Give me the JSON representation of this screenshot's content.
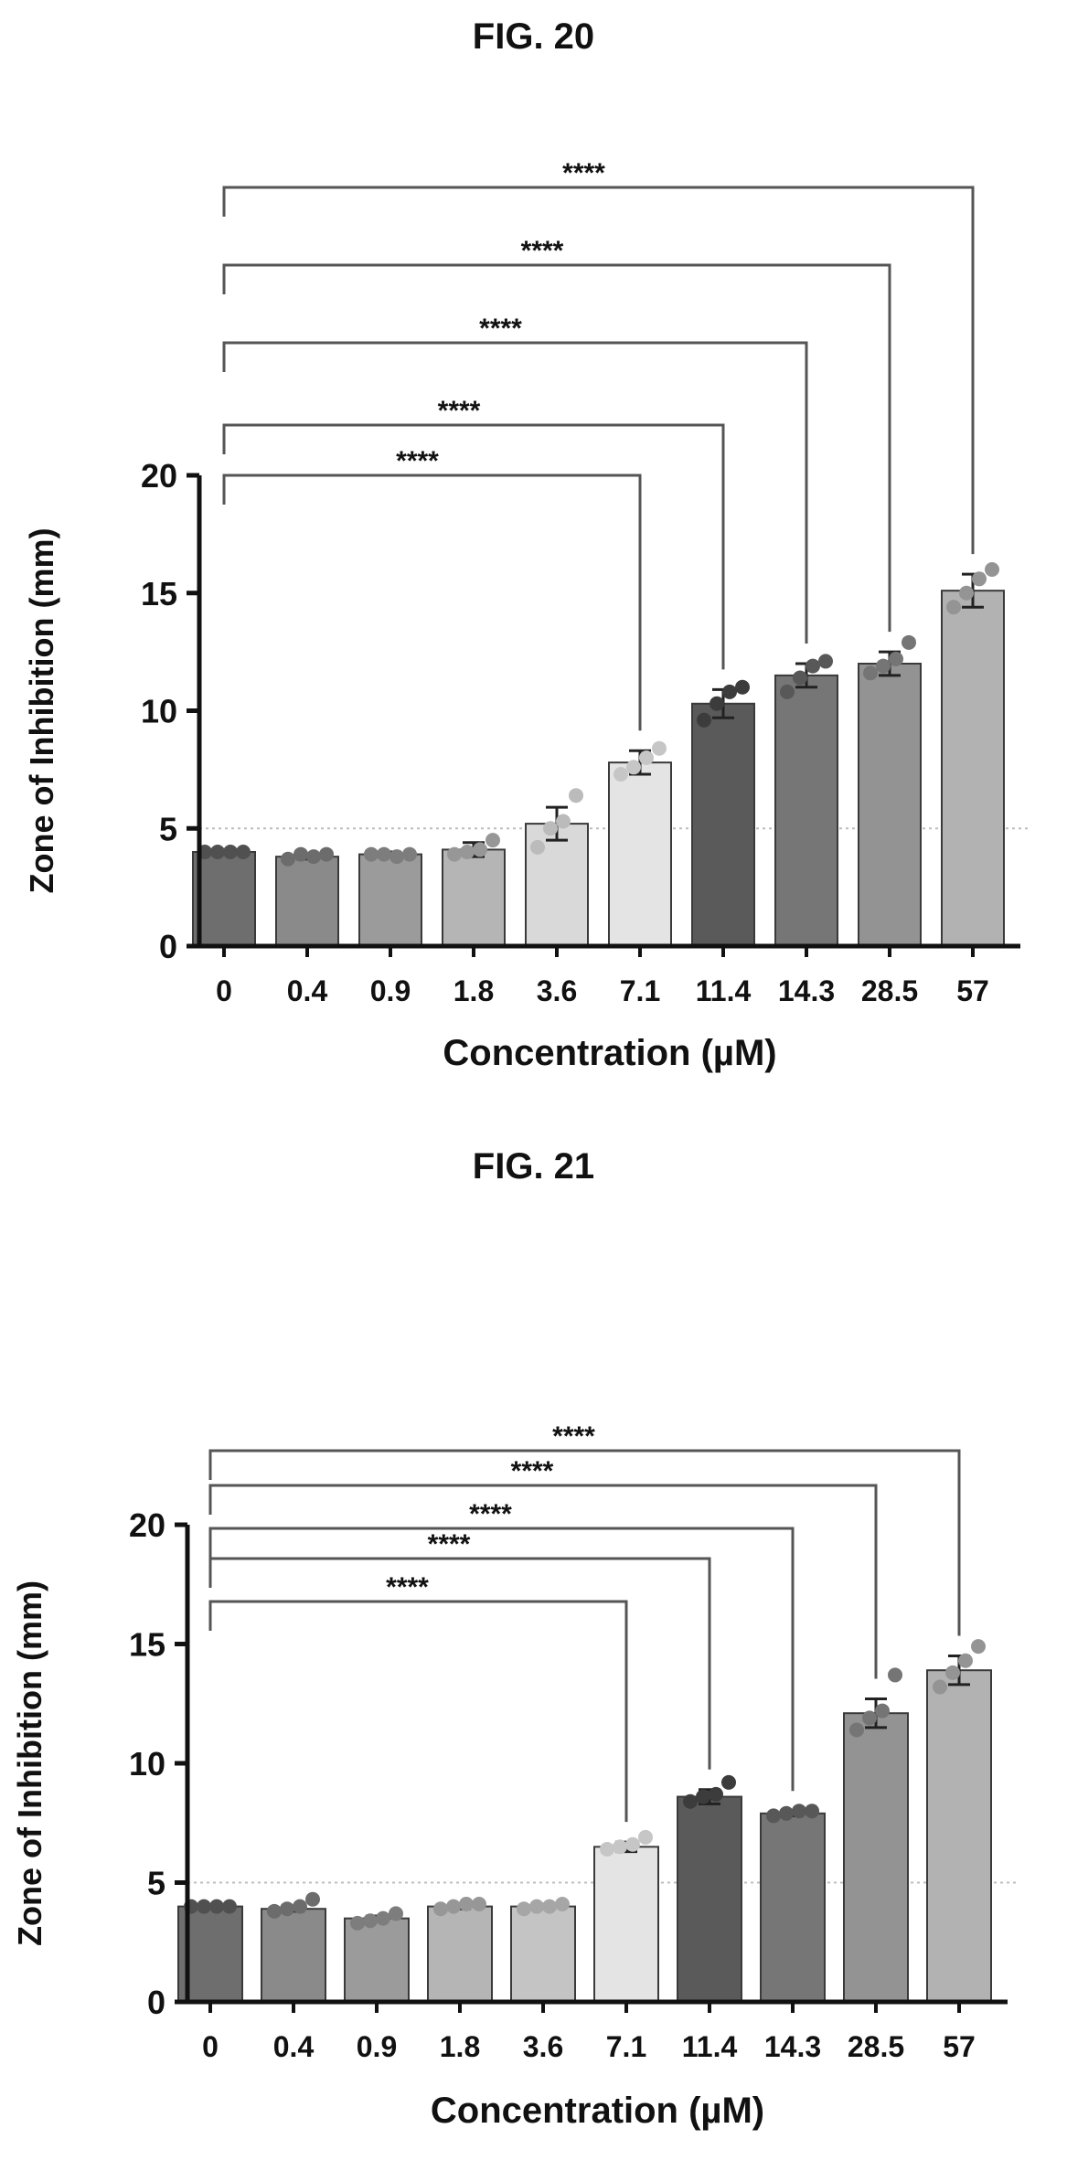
{
  "figures": [
    {
      "id": "fig20",
      "title": "FIG. 20"
    },
    {
      "id": "fig21",
      "title": "FIG. 21"
    }
  ],
  "chart_data": [
    {
      "type": "bar",
      "title": "",
      "xlabel": "Concentration  (µM)",
      "ylabel": "Zone of Inhibition  (mm)",
      "ylim": [
        0,
        20
      ],
      "yticks": [
        "0",
        "5",
        "10",
        "15",
        "20"
      ],
      "categories": [
        "0",
        "0.4",
        "0.9",
        "1.8",
        "3.6",
        "7.1",
        "11.4",
        "14.3",
        "28.5",
        "57"
      ],
      "values": [
        4.0,
        3.8,
        3.9,
        4.1,
        5.2,
        7.8,
        10.3,
        11.5,
        12.0,
        15.1
      ],
      "errors": [
        0.1,
        0.1,
        0.1,
        0.3,
        0.7,
        0.5,
        0.6,
        0.5,
        0.5,
        0.7
      ],
      "points": [
        [
          4,
          4,
          4,
          4
        ],
        [
          3.7,
          3.9,
          3.8,
          3.9
        ],
        [
          3.9,
          3.9,
          3.8,
          3.9
        ],
        [
          3.9,
          4.0,
          4.1,
          4.5
        ],
        [
          4.2,
          5.0,
          5.3,
          6.4
        ],
        [
          7.3,
          7.6,
          8.0,
          8.4
        ],
        [
          9.6,
          10.3,
          10.8,
          11.0
        ],
        [
          10.8,
          11.4,
          11.9,
          12.1
        ],
        [
          11.6,
          11.9,
          12.2,
          12.9
        ],
        [
          14.4,
          15.0,
          15.6,
          16.0
        ]
      ],
      "colors": [
        "#6e6e6e",
        "#8a8a8a",
        "#9b9b9b",
        "#b5b5b5",
        "#d9d9d9",
        "#e4e4e4",
        "#5a5a5a",
        "#767676",
        "#939393",
        "#b2b2b2"
      ],
      "reference_line": 5,
      "comparisons": [
        {
          "from": "0",
          "to": "7.1",
          "label": "****"
        },
        {
          "from": "0",
          "to": "11.4",
          "label": "****"
        },
        {
          "from": "0",
          "to": "14.3",
          "label": "****"
        },
        {
          "from": "0",
          "to": "28.5",
          "label": "****"
        },
        {
          "from": "0",
          "to": "57",
          "label": "****"
        }
      ]
    },
    {
      "type": "bar",
      "title": "",
      "xlabel": "Concentration  (µM)",
      "ylabel": "Zone of Inhibition  (mm)",
      "ylim": [
        0,
        20
      ],
      "yticks": [
        "0",
        "5",
        "10",
        "15",
        "20"
      ],
      "categories": [
        "0",
        "0.4",
        "0.9",
        "1.8",
        "3.6",
        "7.1",
        "11.4",
        "14.3",
        "28.5",
        "57"
      ],
      "values": [
        4.0,
        3.9,
        3.5,
        4.0,
        4.0,
        6.5,
        8.6,
        7.9,
        12.1,
        13.9
      ],
      "errors": [
        0.05,
        0.1,
        0.1,
        0.1,
        0.1,
        0.2,
        0.3,
        0.1,
        0.6,
        0.6
      ],
      "points": [
        [
          4,
          4,
          4,
          4
        ],
        [
          3.8,
          3.9,
          4.0,
          4.3
        ],
        [
          3.3,
          3.4,
          3.5,
          3.7
        ],
        [
          3.9,
          4.0,
          4.1,
          4.1
        ],
        [
          3.9,
          4.0,
          4.0,
          4.1
        ],
        [
          6.4,
          6.5,
          6.6,
          6.9
        ],
        [
          8.4,
          8.6,
          8.7,
          9.2
        ],
        [
          7.8,
          7.9,
          8.0,
          8.0
        ],
        [
          11.4,
          11.9,
          12.2,
          13.7
        ],
        [
          13.2,
          13.8,
          14.3,
          14.9
        ]
      ],
      "colors": [
        "#6e6e6e",
        "#8a8a8a",
        "#9b9b9b",
        "#b5b5b5",
        "#c4c4c4",
        "#e4e4e4",
        "#5a5a5a",
        "#767676",
        "#939393",
        "#b2b2b2"
      ],
      "reference_line": 5,
      "comparisons": [
        {
          "from": "0",
          "to": "7.1",
          "label": "****"
        },
        {
          "from": "0",
          "to": "11.4",
          "label": "****"
        },
        {
          "from": "0",
          "to": "14.3",
          "label": "****"
        },
        {
          "from": "0",
          "to": "28.5",
          "label": "****"
        },
        {
          "from": "0",
          "to": "57",
          "label": "****"
        }
      ]
    }
  ]
}
